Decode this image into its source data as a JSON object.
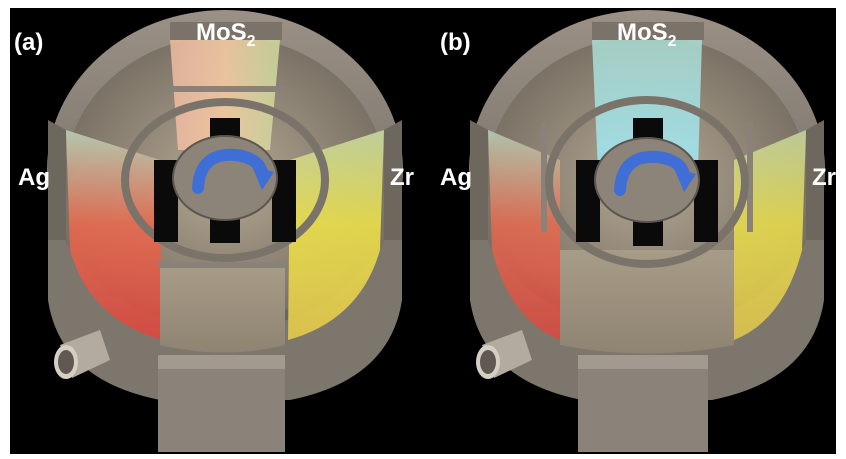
{
  "panels": [
    {
      "panel_label": "(a)",
      "top_target": "MoS",
      "top_target_subscript": "2",
      "left_target": "Ag",
      "right_target": "Zr",
      "rotation_arrow_icon": "clockwise-arrow-icon"
    },
    {
      "panel_label": "(b)",
      "top_target": "MoS",
      "top_target_subscript": "2",
      "left_target": "Ag",
      "right_target": "Zr",
      "rotation_arrow_icon": "clockwise-arrow-icon"
    }
  ],
  "colors": {
    "background": "#000000",
    "chamber_metal": "#8a8278",
    "ag_plasma": "#e8564a",
    "zr_plasma": "#e6e24a",
    "mos2_plasma": "#9fe0d8",
    "arrow": "#3f6fd6"
  }
}
